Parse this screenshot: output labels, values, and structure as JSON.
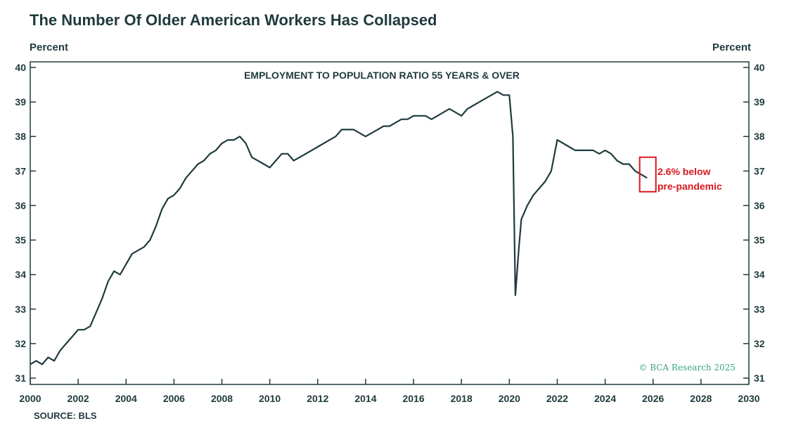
{
  "title": "The Number Of Older American Workers Has Collapsed",
  "unit_left": "Percent",
  "unit_right": "Percent",
  "source": "SOURCE: BLS",
  "credit": "© BCA Research 2025",
  "colors": {
    "line": "#1f3a3d",
    "axis": "#1f3a3d",
    "annotation": "#d7191c",
    "credit": "#3aa58a"
  },
  "chart_data": {
    "type": "line",
    "title": "EMPLOYMENT TO POPULATION RATIO 55 YEARS & OVER",
    "xlabel": "",
    "ylabel": "Percent",
    "xlim": [
      2000,
      2030
    ],
    "ylim": [
      31,
      40
    ],
    "x_ticks": [
      "2000",
      "2002",
      "2004",
      "2006",
      "2008",
      "2010",
      "2012",
      "2014",
      "2016",
      "2018",
      "2020",
      "2022",
      "2024",
      "2026",
      "2028",
      "2030"
    ],
    "y_ticks": [
      "31",
      "32",
      "33",
      "34",
      "35",
      "36",
      "37",
      "38",
      "39",
      "40"
    ],
    "grid": false,
    "series": [
      {
        "name": "Employment to population ratio 55 years & over",
        "points": [
          [
            2000.0,
            31.4
          ],
          [
            2000.25,
            31.5
          ],
          [
            2000.5,
            31.4
          ],
          [
            2000.75,
            31.6
          ],
          [
            2001.0,
            31.5
          ],
          [
            2001.25,
            31.8
          ],
          [
            2001.5,
            32.0
          ],
          [
            2001.75,
            32.2
          ],
          [
            2002.0,
            32.4
          ],
          [
            2002.25,
            32.4
          ],
          [
            2002.5,
            32.5
          ],
          [
            2002.75,
            32.9
          ],
          [
            2003.0,
            33.3
          ],
          [
            2003.25,
            33.8
          ],
          [
            2003.5,
            34.1
          ],
          [
            2003.75,
            34.0
          ],
          [
            2004.0,
            34.3
          ],
          [
            2004.25,
            34.6
          ],
          [
            2004.5,
            34.7
          ],
          [
            2004.75,
            34.8
          ],
          [
            2005.0,
            35.0
          ],
          [
            2005.25,
            35.4
          ],
          [
            2005.5,
            35.9
          ],
          [
            2005.75,
            36.2
          ],
          [
            2006.0,
            36.3
          ],
          [
            2006.25,
            36.5
          ],
          [
            2006.5,
            36.8
          ],
          [
            2006.75,
            37.0
          ],
          [
            2007.0,
            37.2
          ],
          [
            2007.25,
            37.3
          ],
          [
            2007.5,
            37.5
          ],
          [
            2007.75,
            37.6
          ],
          [
            2008.0,
            37.8
          ],
          [
            2008.25,
            37.9
          ],
          [
            2008.5,
            37.9
          ],
          [
            2008.75,
            38.0
          ],
          [
            2009.0,
            37.8
          ],
          [
            2009.25,
            37.4
          ],
          [
            2009.5,
            37.3
          ],
          [
            2009.75,
            37.2
          ],
          [
            2010.0,
            37.1
          ],
          [
            2010.25,
            37.3
          ],
          [
            2010.5,
            37.5
          ],
          [
            2010.75,
            37.5
          ],
          [
            2011.0,
            37.3
          ],
          [
            2011.25,
            37.4
          ],
          [
            2011.5,
            37.5
          ],
          [
            2011.75,
            37.6
          ],
          [
            2012.0,
            37.7
          ],
          [
            2012.25,
            37.8
          ],
          [
            2012.5,
            37.9
          ],
          [
            2012.75,
            38.0
          ],
          [
            2013.0,
            38.2
          ],
          [
            2013.25,
            38.2
          ],
          [
            2013.5,
            38.2
          ],
          [
            2013.75,
            38.1
          ],
          [
            2014.0,
            38.0
          ],
          [
            2014.25,
            38.1
          ],
          [
            2014.5,
            38.2
          ],
          [
            2014.75,
            38.3
          ],
          [
            2015.0,
            38.3
          ],
          [
            2015.25,
            38.4
          ],
          [
            2015.5,
            38.5
          ],
          [
            2015.75,
            38.5
          ],
          [
            2016.0,
            38.6
          ],
          [
            2016.25,
            38.6
          ],
          [
            2016.5,
            38.6
          ],
          [
            2016.75,
            38.5
          ],
          [
            2017.0,
            38.6
          ],
          [
            2017.25,
            38.7
          ],
          [
            2017.5,
            38.8
          ],
          [
            2017.75,
            38.7
          ],
          [
            2018.0,
            38.6
          ],
          [
            2018.25,
            38.8
          ],
          [
            2018.5,
            38.9
          ],
          [
            2018.75,
            39.0
          ],
          [
            2019.0,
            39.1
          ],
          [
            2019.25,
            39.2
          ],
          [
            2019.5,
            39.3
          ],
          [
            2019.75,
            39.2
          ],
          [
            2020.0,
            39.2
          ],
          [
            2020.15,
            38.0
          ],
          [
            2020.25,
            33.4
          ],
          [
            2020.4,
            34.8
          ],
          [
            2020.5,
            35.6
          ],
          [
            2020.75,
            36.0
          ],
          [
            2021.0,
            36.3
          ],
          [
            2021.25,
            36.5
          ],
          [
            2021.5,
            36.7
          ],
          [
            2021.75,
            37.0
          ],
          [
            2022.0,
            37.9
          ],
          [
            2022.25,
            37.8
          ],
          [
            2022.5,
            37.7
          ],
          [
            2022.75,
            37.6
          ],
          [
            2023.0,
            37.6
          ],
          [
            2023.25,
            37.6
          ],
          [
            2023.5,
            37.6
          ],
          [
            2023.75,
            37.5
          ],
          [
            2024.0,
            37.6
          ],
          [
            2024.25,
            37.5
          ],
          [
            2024.5,
            37.3
          ],
          [
            2024.75,
            37.2
          ],
          [
            2025.0,
            37.2
          ],
          [
            2025.25,
            37.0
          ],
          [
            2025.5,
            36.9
          ],
          [
            2025.75,
            36.8
          ]
        ]
      }
    ],
    "annotation": {
      "lines": [
        "2.6% below",
        "pre-pandemic"
      ],
      "x_range": [
        2025.5,
        2026.0
      ],
      "y_range": [
        36.4,
        37.4
      ]
    }
  }
}
